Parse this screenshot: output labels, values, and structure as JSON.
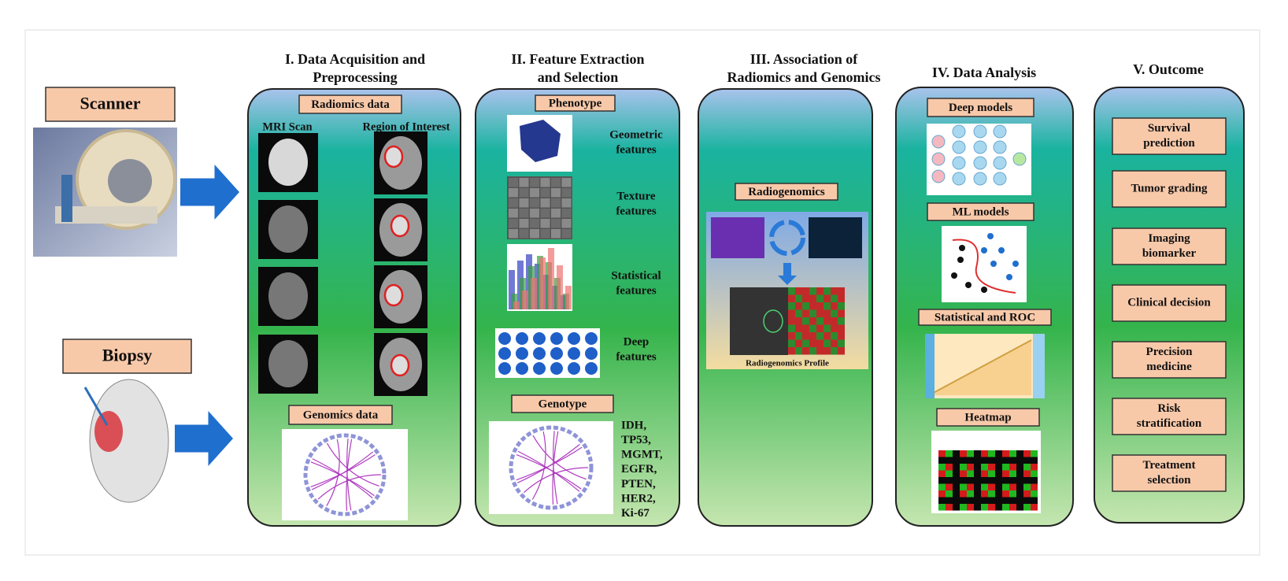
{
  "inputs": {
    "scanner": "Scanner",
    "biopsy": "Biopsy"
  },
  "stages": [
    {
      "title": [
        "I. Data Acquisition and",
        "Preprocessing"
      ],
      "radiomics": "Radiomics data",
      "columns": [
        "MRI Scan",
        "Region of Interest"
      ],
      "genomics": "Genomics data"
    },
    {
      "title": [
        "II. Feature Extraction",
        "and Selection"
      ],
      "phenotype": "Phenotype",
      "features": [
        [
          "Geometric",
          "features"
        ],
        [
          "Texture",
          "features"
        ],
        [
          "Statistical",
          "features"
        ],
        [
          "Deep",
          "features"
        ]
      ],
      "genotype": "Genotype",
      "genes": [
        "IDH,",
        "TP53,",
        "MGMT,",
        "EGFR,",
        "PTEN,",
        "HER2,",
        "Ki-67"
      ]
    },
    {
      "title": [
        "III. Association of",
        "Radiomics and Genomics"
      ],
      "label": "Radiogenomics",
      "caption": "Radiogenomics Profile"
    },
    {
      "title": [
        "IV. Data Analysis"
      ],
      "methods": [
        "Deep models",
        "ML models",
        "Statistical and ROC",
        "Heatmap"
      ]
    },
    {
      "title": [
        "V. Outcome"
      ],
      "outcomes": [
        [
          "Survival",
          "prediction"
        ],
        [
          "Tumor grading"
        ],
        [
          "Imaging",
          "biomarker"
        ],
        [
          "Clinical decision"
        ],
        [
          "Precision",
          "medicine"
        ],
        [
          "Risk",
          "stratification"
        ],
        [
          "Treatment",
          "selection"
        ]
      ]
    }
  ]
}
